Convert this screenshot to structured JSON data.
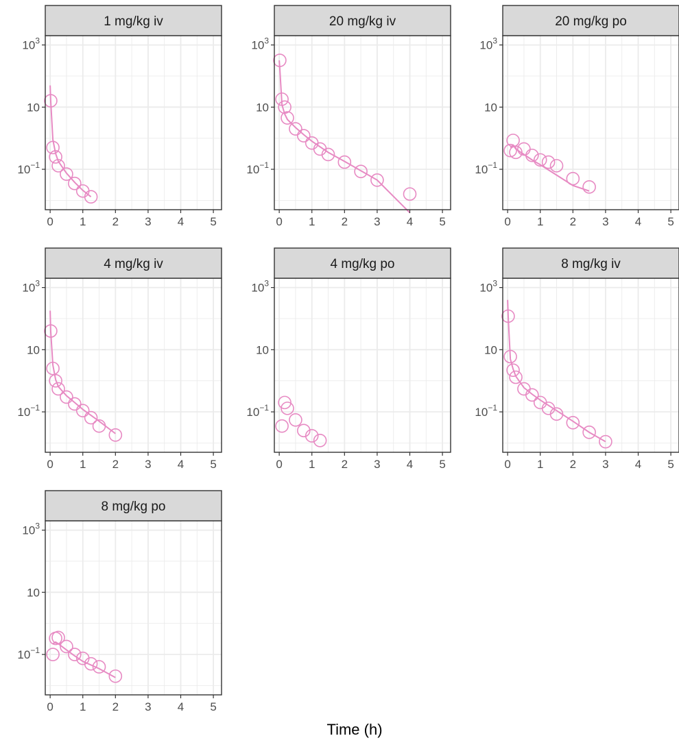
{
  "chart_data": {
    "type": "scatter",
    "xlabel": "Time (h)",
    "ylabel": "",
    "xlim": [
      -0.15,
      5.25
    ],
    "ylim_log10": [
      -2.3,
      3.3
    ],
    "y_scale": "log10",
    "grid": true,
    "x_ticks": [
      0,
      1,
      2,
      3,
      4,
      5
    ],
    "x_tick_labels": [
      "0",
      "1",
      "2",
      "3",
      "4",
      "5"
    ],
    "y_ticks": [
      0.1,
      10,
      1000
    ],
    "y_tick_labels": [
      {
        "base": "10",
        "exp": "−1"
      },
      {
        "base": "10",
        "exp": ""
      },
      {
        "base": "10",
        "exp": "3"
      }
    ],
    "colors": {
      "series": "#e78ac3",
      "strip_fill": "#d9d9d9",
      "grid": "#ebebeb",
      "frame": "#333333"
    },
    "panels": [
      {
        "title": "1 mg/kg iv",
        "points": [
          [
            0.0167,
            16
          ],
          [
            0.0833,
            0.5
          ],
          [
            0.167,
            0.25
          ],
          [
            0.25,
            0.13
          ],
          [
            0.5,
            0.07
          ],
          [
            0.75,
            0.035
          ],
          [
            1.0,
            0.02
          ],
          [
            1.25,
            0.013
          ]
        ],
        "line": [
          [
            0,
            50
          ],
          [
            0.0167,
            16
          ],
          [
            0.0833,
            0.9
          ],
          [
            0.167,
            0.32
          ],
          [
            0.25,
            0.18
          ],
          [
            0.5,
            0.075
          ],
          [
            0.75,
            0.038
          ],
          [
            1.0,
            0.021
          ],
          [
            1.25,
            0.013
          ]
        ]
      },
      {
        "title": "20 mg/kg iv",
        "points": [
          [
            0.0167,
            320
          ],
          [
            0.0833,
            18
          ],
          [
            0.167,
            10
          ],
          [
            0.25,
            4.5
          ],
          [
            0.5,
            2.0
          ],
          [
            0.75,
            1.2
          ],
          [
            1.0,
            0.7
          ],
          [
            1.25,
            0.45
          ],
          [
            1.5,
            0.3
          ],
          [
            2.0,
            0.17
          ],
          [
            2.5,
            0.085
          ],
          [
            3.0,
            0.045
          ],
          [
            4.0,
            0.016
          ]
        ],
        "line": [
          [
            0,
            320
          ],
          [
            0.0167,
            180
          ],
          [
            0.0833,
            12
          ],
          [
            0.167,
            6
          ],
          [
            0.25,
            4.0
          ],
          [
            0.5,
            2.2
          ],
          [
            0.75,
            1.3
          ],
          [
            1.0,
            0.8
          ],
          [
            1.5,
            0.35
          ],
          [
            2.0,
            0.18
          ],
          [
            2.5,
            0.09
          ],
          [
            3.0,
            0.045
          ],
          [
            4.0,
            0.004
          ]
        ]
      },
      {
        "title": "20 mg/kg po",
        "points": [
          [
            0.0833,
            0.4
          ],
          [
            0.167,
            0.85
          ],
          [
            0.25,
            0.35
          ],
          [
            0.5,
            0.45
          ],
          [
            0.75,
            0.28
          ],
          [
            1.0,
            0.2
          ],
          [
            1.25,
            0.17
          ],
          [
            1.5,
            0.13
          ],
          [
            2.0,
            0.05
          ],
          [
            2.5,
            0.027
          ]
        ],
        "line": [
          [
            0.0833,
            0.5
          ],
          [
            0.167,
            0.6
          ],
          [
            0.25,
            0.45
          ],
          [
            0.5,
            0.3
          ],
          [
            0.75,
            0.2
          ],
          [
            1.0,
            0.14
          ],
          [
            1.5,
            0.065
          ],
          [
            2.0,
            0.03
          ],
          [
            2.5,
            0.02
          ]
        ]
      },
      {
        "title": "4 mg/kg iv",
        "points": [
          [
            0.0167,
            40
          ],
          [
            0.0833,
            2.5
          ],
          [
            0.167,
            1.0
          ],
          [
            0.25,
            0.55
          ],
          [
            0.5,
            0.3
          ],
          [
            0.75,
            0.18
          ],
          [
            1.0,
            0.11
          ],
          [
            1.25,
            0.065
          ],
          [
            1.5,
            0.035
          ],
          [
            2.0,
            0.018
          ]
        ],
        "line": [
          [
            0,
            180
          ],
          [
            0.0167,
            40
          ],
          [
            0.0833,
            3.2
          ],
          [
            0.167,
            1.1
          ],
          [
            0.25,
            0.65
          ],
          [
            0.5,
            0.33
          ],
          [
            0.75,
            0.2
          ],
          [
            1.0,
            0.12
          ],
          [
            1.5,
            0.05
          ],
          [
            2.0,
            0.02
          ]
        ]
      },
      {
        "title": "4 mg/kg po",
        "points": [
          [
            0.0833,
            0.035
          ],
          [
            0.167,
            0.2
          ],
          [
            0.25,
            0.13
          ],
          [
            0.5,
            0.055
          ],
          [
            0.75,
            0.025
          ],
          [
            1.0,
            0.017
          ],
          [
            1.25,
            0.012
          ]
        ],
        "line": []
      },
      {
        "title": "8 mg/kg iv",
        "points": [
          [
            0.0167,
            120
          ],
          [
            0.0833,
            6
          ],
          [
            0.167,
            2.2
          ],
          [
            0.25,
            1.3
          ],
          [
            0.5,
            0.55
          ],
          [
            0.75,
            0.35
          ],
          [
            1.0,
            0.2
          ],
          [
            1.25,
            0.13
          ],
          [
            1.5,
            0.085
          ],
          [
            2.0,
            0.045
          ],
          [
            2.5,
            0.022
          ],
          [
            3.0,
            0.011
          ]
        ],
        "line": [
          [
            0,
            400
          ],
          [
            0.0167,
            120
          ],
          [
            0.0833,
            5
          ],
          [
            0.167,
            2.4
          ],
          [
            0.25,
            1.4
          ],
          [
            0.5,
            0.6
          ],
          [
            0.75,
            0.37
          ],
          [
            1.0,
            0.24
          ],
          [
            1.5,
            0.11
          ],
          [
            2.0,
            0.05
          ],
          [
            2.5,
            0.022
          ],
          [
            3.0,
            0.011
          ]
        ]
      },
      {
        "title": "8 mg/kg po",
        "points": [
          [
            0.0833,
            0.1
          ],
          [
            0.167,
            0.33
          ],
          [
            0.25,
            0.35
          ],
          [
            0.5,
            0.18
          ],
          [
            0.75,
            0.1
          ],
          [
            1.0,
            0.075
          ],
          [
            1.25,
            0.05
          ],
          [
            1.5,
            0.04
          ],
          [
            2.0,
            0.02
          ]
        ],
        "line": [
          [
            0.0833,
            0.22
          ],
          [
            0.167,
            0.25
          ],
          [
            0.25,
            0.22
          ],
          [
            0.5,
            0.14
          ],
          [
            0.75,
            0.09
          ],
          [
            1.0,
            0.06
          ],
          [
            1.5,
            0.035
          ],
          [
            2.0,
            0.018
          ]
        ]
      }
    ]
  }
}
